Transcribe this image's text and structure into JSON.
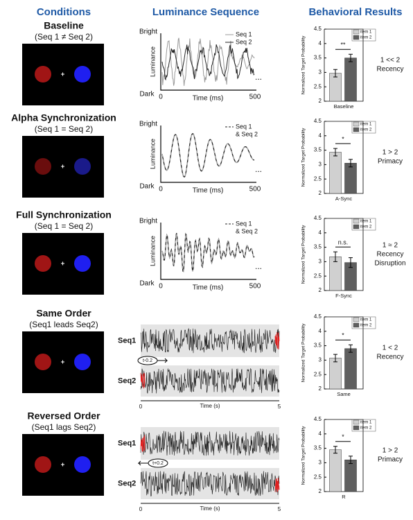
{
  "headers": [
    "Conditions",
    "Luminance Sequence",
    "Behavioral Results"
  ],
  "rows": [
    {
      "title": "Baseline",
      "subtitle": "(Seq 1 ≠ Seq 2)",
      "luminance": {
        "y_top": "Bright",
        "y_bottom": "Dark",
        "y_label": "Luminance",
        "x_ticks": [
          "0",
          "500"
        ],
        "x_label": "Time (ms)",
        "legend": [
          "Seq 1",
          "Seq 2"
        ],
        "ellipsis": "..."
      },
      "result": [
        "1 << 2",
        "Recency"
      ]
    },
    {
      "title": "Alpha Synchronization",
      "subtitle": "(Seq 1 = Seq 2)",
      "luminance": {
        "y_top": "Bright",
        "y_bottom": "Dark",
        "y_label": "Luminance",
        "x_ticks": [
          "0",
          "500"
        ],
        "x_label": "Time (ms)",
        "legend": [
          "Seq 1",
          "& Seq 2"
        ],
        "ellipsis": "..."
      },
      "result": [
        "1 > 2",
        "Primacy"
      ]
    },
    {
      "title": "Full Synchronization",
      "subtitle": "(Seq 1 = Seq 2)",
      "luminance": {
        "y_top": "Bright",
        "y_bottom": "Dark",
        "y_label": "Luminance",
        "x_ticks": [
          "0",
          "500"
        ],
        "x_label": "Time (ms)",
        "legend": [
          "Seq 1",
          "& Seq 2"
        ],
        "ellipsis": "..."
      },
      "result": [
        "1 ≈ 2",
        "Recency",
        "Disruption"
      ]
    },
    {
      "title": "Same Order",
      "subtitle": "(Seq1 leads Seq2)",
      "luminance": {
        "seq_labels": [
          "Seq1",
          "Seq2"
        ],
        "lag": "t-0.2",
        "x_ticks": [
          "0",
          "5"
        ],
        "x_label": "Time (s)"
      },
      "result": [
        "1 < 2",
        "Recency"
      ]
    },
    {
      "title": "Reversed Order",
      "subtitle": "(Seq1 lags Seq2)",
      "luminance": {
        "seq_labels": [
          "Seq1",
          "Seq2"
        ],
        "lag": "t+0.2",
        "x_ticks": [
          "0",
          "5"
        ],
        "x_label": "Time (s)"
      },
      "result": [
        "1 > 2",
        "Primacy"
      ]
    }
  ],
  "chart_data": [
    {
      "type": "bar",
      "y_label": "Normalized Target Probability",
      "categories": [
        "Baseline"
      ],
      "annotation": "**",
      "ylim": [
        2,
        4.5
      ],
      "yticks": [
        2,
        2.5,
        3,
        3.5,
        4,
        4.5
      ],
      "series": [
        {
          "name": "item 1",
          "color": "#d0d0d0",
          "values": [
            2.97
          ],
          "errors": [
            0.13
          ]
        },
        {
          "name": "item 2",
          "color": "#5f5f5f",
          "values": [
            3.5
          ],
          "errors": [
            0.13
          ]
        }
      ]
    },
    {
      "type": "bar",
      "y_label": "Normalized Target Probability",
      "categories": [
        "A-Sync"
      ],
      "annotation": "*",
      "ylim": [
        2,
        4.5
      ],
      "yticks": [
        2,
        2.5,
        3,
        3.5,
        4,
        4.5
      ],
      "series": [
        {
          "name": "item 1",
          "color": "#d0d0d0",
          "values": [
            3.43
          ],
          "errors": [
            0.13
          ]
        },
        {
          "name": "item 2",
          "color": "#5f5f5f",
          "values": [
            3.05
          ],
          "errors": [
            0.13
          ]
        }
      ]
    },
    {
      "type": "bar",
      "y_label": "Normalized Target Probability",
      "categories": [
        "F-Sync"
      ],
      "annotation": "n.s.",
      "ylim": [
        2,
        4.5
      ],
      "yticks": [
        2,
        2.5,
        3,
        3.5,
        4,
        4.5
      ],
      "series": [
        {
          "name": "item 1",
          "color": "#d0d0d0",
          "values": [
            3.17
          ],
          "errors": [
            0.17
          ]
        },
        {
          "name": "item 2",
          "color": "#5f5f5f",
          "values": [
            2.97
          ],
          "errors": [
            0.17
          ]
        }
      ]
    },
    {
      "type": "bar",
      "y_label": "Normalized Target Probability",
      "categories": [
        "Same"
      ],
      "annotation": "*",
      "ylim": [
        2,
        4.5
      ],
      "yticks": [
        2,
        2.5,
        3,
        3.5,
        4,
        4.5
      ],
      "series": [
        {
          "name": "item 1",
          "color": "#d0d0d0",
          "values": [
            3.07
          ],
          "errors": [
            0.13
          ]
        },
        {
          "name": "item 2",
          "color": "#5f5f5f",
          "values": [
            3.4
          ],
          "errors": [
            0.13
          ]
        }
      ]
    },
    {
      "type": "bar",
      "y_label": "Normalized Target Probability",
      "categories": [
        "R"
      ],
      "annotation": "*",
      "ylim": [
        2,
        4.5
      ],
      "yticks": [
        2,
        2.5,
        3,
        3.5,
        4,
        4.5
      ],
      "series": [
        {
          "name": "item 1",
          "color": "#d0d0d0",
          "values": [
            3.45
          ],
          "errors": [
            0.12
          ]
        },
        {
          "name": "item 2",
          "color": "#5f5f5f",
          "values": [
            3.1
          ],
          "errors": [
            0.13
          ]
        }
      ]
    }
  ]
}
